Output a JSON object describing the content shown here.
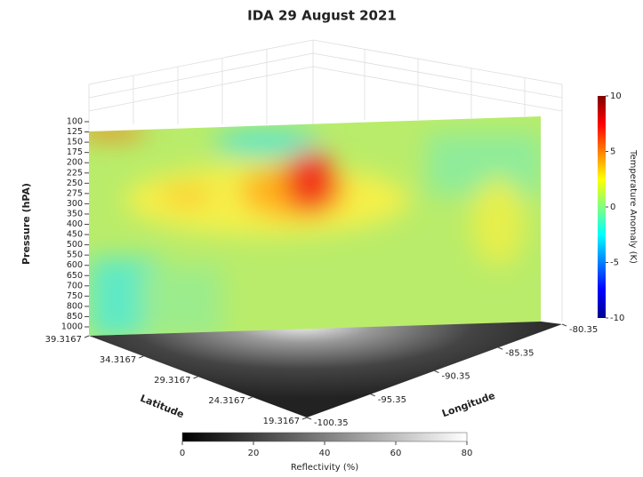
{
  "chart_data": {
    "type": "surface3d",
    "title": "IDA 29 August 2021",
    "pressure": {
      "label": "Pressure (hPA)",
      "ticks": [
        100,
        125,
        150,
        175,
        200,
        225,
        250,
        275,
        300,
        350,
        400,
        450,
        500,
        550,
        600,
        650,
        700,
        750,
        800,
        850,
        1000
      ]
    },
    "latitude": {
      "label": "Latitude",
      "lim": [
        19.3167,
        39.3167
      ],
      "ticks": [
        39.3167,
        34.3167,
        29.3167,
        24.3167,
        19.3167
      ]
    },
    "longitude": {
      "label": "Longitude",
      "lim": [
        -100.35,
        -80.35
      ],
      "ticks": [
        -100.35,
        -95.35,
        -90.35,
        -85.35,
        -80.35
      ]
    },
    "colorbar": {
      "label": "Temperature Anomaly (K)",
      "lim": [
        -10,
        10
      ],
      "ticks": [
        -10,
        -5,
        0,
        5,
        10
      ]
    },
    "reflectivity": {
      "label": "Reflectivity (%)",
      "lim": [
        0,
        80
      ],
      "ticks": [
        0,
        20,
        40,
        60,
        80
      ]
    }
  }
}
